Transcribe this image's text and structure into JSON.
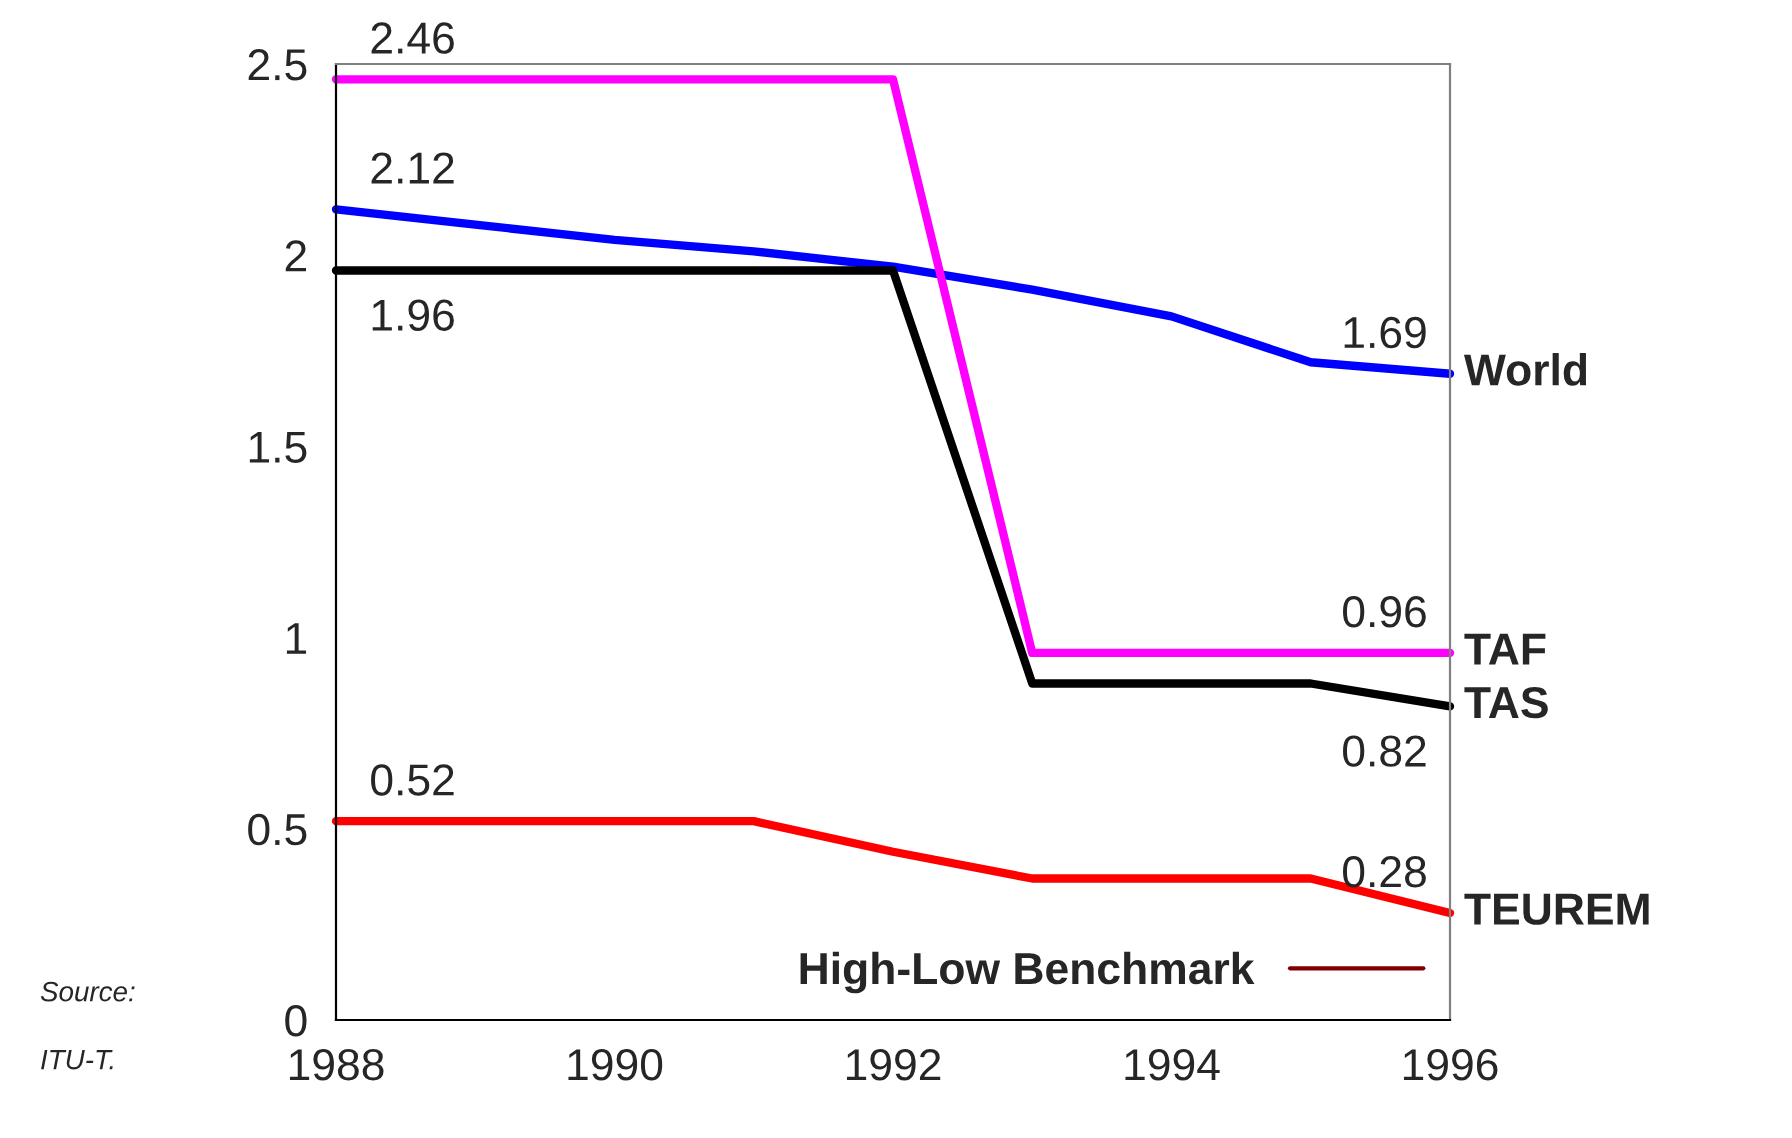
{
  "chart_data": {
    "type": "line",
    "x": [
      1988,
      1989,
      1990,
      1991,
      1992,
      1993,
      1994,
      1995,
      1996
    ],
    "xlim": [
      1988,
      1996
    ],
    "xticks": [
      1988,
      1990,
      1992,
      1994,
      1996
    ],
    "ylim": [
      0,
      2.5
    ],
    "yticks": [
      0,
      0.5,
      1,
      1.5,
      2,
      2.5
    ],
    "grid": false,
    "legend": "bottom right",
    "marker": "none",
    "line_style": "solid",
    "series": [
      {
        "name": "World",
        "color": "#0000ff",
        "values": [
          2.12,
          2.08,
          2.04,
          2.01,
          1.97,
          1.91,
          1.84,
          1.72,
          1.69
        ],
        "value_labels": [
          "2.12",
          null,
          null,
          null,
          null,
          null,
          null,
          null,
          "1.69"
        ]
      },
      {
        "name": "TAF",
        "color": "#ff00ff",
        "values": [
          2.46,
          2.46,
          2.46,
          2.46,
          2.46,
          0.96,
          0.96,
          0.96,
          0.96
        ],
        "value_labels": [
          "2.46",
          null,
          null,
          null,
          null,
          null,
          null,
          null,
          "0.96"
        ]
      },
      {
        "name": "TAS",
        "color": "#000000",
        "values": [
          1.96,
          1.96,
          1.96,
          1.96,
          1.96,
          0.88,
          0.88,
          0.88,
          0.82
        ],
        "value_labels": [
          "1.96",
          null,
          null,
          null,
          null,
          null,
          null,
          null,
          "0.82"
        ]
      },
      {
        "name": "TEUREM",
        "color": "#ff0000",
        "values": [
          0.52,
          0.52,
          0.52,
          0.52,
          0.44,
          0.37,
          0.37,
          0.37,
          0.28
        ],
        "value_labels": [
          "0.52",
          null,
          null,
          null,
          null,
          null,
          null,
          null,
          "0.28"
        ]
      },
      {
        "name": "High-Low Benchmark",
        "color": "#800000",
        "values": [
          null,
          null,
          null,
          null,
          null,
          null,
          null,
          null,
          null
        ]
      }
    ],
    "annotations": [
      "Source:",
      "ITU-T."
    ]
  }
}
